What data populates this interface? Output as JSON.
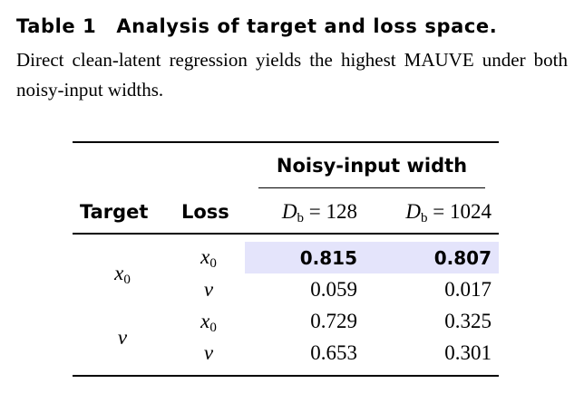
{
  "caption": {
    "label": "Table 1",
    "title": "Analysis of target and loss space.",
    "text": "Direct clean-latent regression yields the highest MAUVE under both noisy-input widths."
  },
  "table": {
    "group_header": "Noisy-input width",
    "columns": [
      "Target",
      "Loss",
      {
        "symbol": "D",
        "subscript": "b",
        "rest": "= 128"
      },
      {
        "symbol": "D",
        "subscript": "b",
        "rest": "= 1024"
      }
    ],
    "targets": [
      {
        "symbol": "x",
        "subscript": "0"
      },
      {
        "symbol": "v"
      }
    ],
    "rows": [
      {
        "loss": {
          "symbol": "x",
          "subscript": "0"
        },
        "cells": [
          "0.815",
          "0.807"
        ],
        "bold": true,
        "highlight": true
      },
      {
        "loss": {
          "symbol": "v"
        },
        "cells": [
          "0.059",
          "0.017"
        ]
      },
      {
        "loss": {
          "symbol": "x",
          "subscript": "0"
        },
        "cells": [
          "0.729",
          "0.325"
        ]
      },
      {
        "loss": {
          "symbol": "v"
        },
        "cells": [
          "0.653",
          "0.301"
        ]
      }
    ]
  }
}
